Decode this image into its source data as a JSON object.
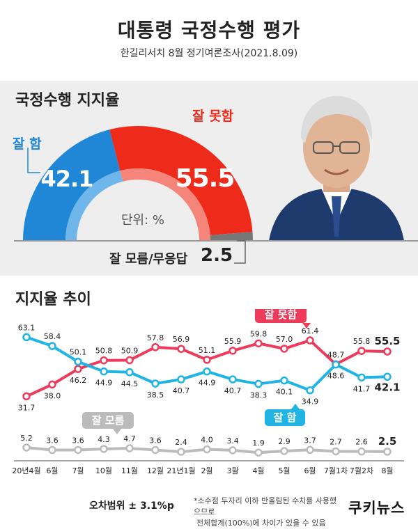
{
  "title": "대통령 국정수행 평가",
  "subtitle": "한길리서치 8월 정기여론조사(2021.8.09)",
  "gauge": {
    "heading": "국정수행 지지율",
    "good_label": "잘 함",
    "good_value": "42.1",
    "bad_label": "잘 못함",
    "bad_value": "55.5",
    "unit": "단위: %",
    "dk_label": "잘 모름/무응답",
    "dk_value": "2.5"
  },
  "trend": {
    "heading": "지지율 추이",
    "bad_tag": "잘 못함",
    "good_tag": "잘 함",
    "dk_tag": "잘 모름"
  },
  "colors": {
    "good": "#1fb4e3",
    "bad": "#ee3a5b",
    "dk": "#bbbbbb",
    "gauge_good": "#1f87d6",
    "gauge_bad": "#ee2a1a",
    "gauge_dk": "#777777"
  },
  "chart_data": {
    "type": "line",
    "categories": [
      "20년4월",
      "6월",
      "7월",
      "10월",
      "11월",
      "12월",
      "21년1월",
      "2월",
      "3월",
      "4월",
      "5월",
      "6월",
      "7월1차",
      "7월2차",
      "8월"
    ],
    "series": [
      {
        "name": "잘 못함",
        "values": [
          31.7,
          38.0,
          46.2,
          50.8,
          50.9,
          57.8,
          56.9,
          51.1,
          55.9,
          59.8,
          57.0,
          61.4,
          48.7,
          55.8,
          55.5
        ]
      },
      {
        "name": "잘 함",
        "values": [
          63.1,
          58.4,
          50.1,
          44.9,
          44.5,
          38.5,
          40.7,
          44.9,
          40.7,
          38.3,
          40.1,
          34.9,
          48.6,
          41.7,
          42.1
        ]
      },
      {
        "name": "잘 모름",
        "values": [
          5.2,
          3.6,
          3.6,
          4.3,
          4.7,
          3.6,
          2.4,
          4.0,
          3.4,
          1.9,
          2.9,
          3.7,
          2.7,
          2.6,
          2.5
        ]
      }
    ]
  },
  "footer": {
    "margin": "오차범위 ± 3.1%p",
    "note1": "*소수점 두자리 이하 반올림된 수치를 사용했으므로",
    "note2": "전체합계(100%)에 차이가 있을 수 있음",
    "logo": "쿠키뉴스"
  }
}
